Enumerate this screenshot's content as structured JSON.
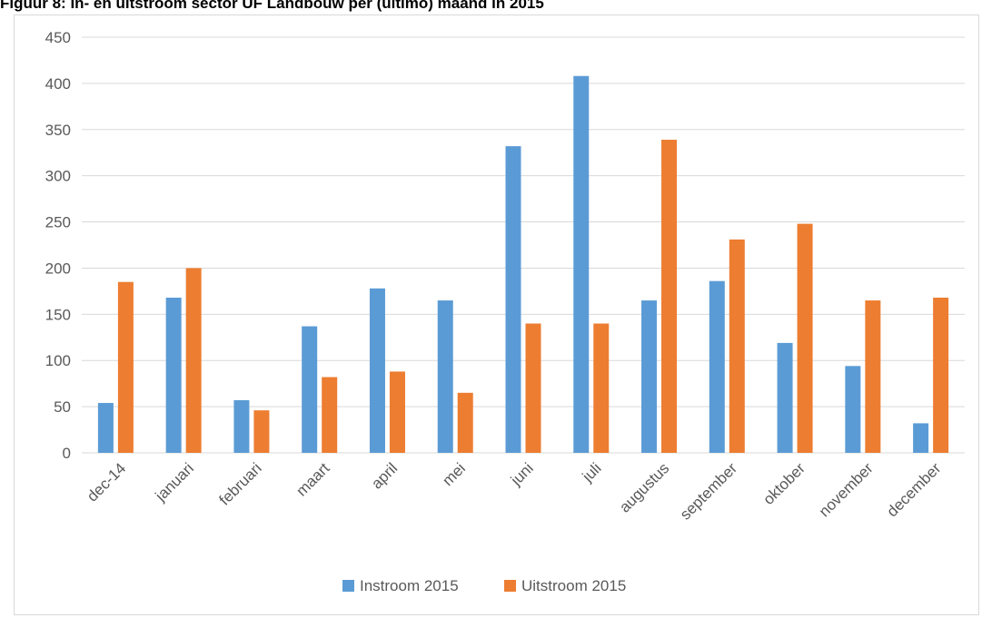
{
  "figure": {
    "title": "Figuur 8: In- en uitstroom sector UF Landbouw per (ultimo) maand in 2015"
  },
  "chart_data": {
    "type": "bar",
    "title": "",
    "xlabel": "",
    "ylabel": "",
    "categories": [
      "dec-14",
      "januari",
      "februari",
      "maart",
      "april",
      "mei",
      "juni",
      "juli",
      "augustus",
      "september",
      "oktober",
      "november",
      "december"
    ],
    "series": [
      {
        "name": "Instroom 2015",
        "color": "#5b9bd5",
        "values": [
          54,
          168,
          57,
          137,
          178,
          165,
          332,
          408,
          165,
          186,
          119,
          94,
          32
        ]
      },
      {
        "name": "Uitstroom 2015",
        "color": "#ed7d31",
        "values": [
          185,
          200,
          46,
          82,
          88,
          65,
          140,
          140,
          339,
          231,
          248,
          165,
          168
        ]
      }
    ],
    "ylim": [
      0,
      450
    ],
    "yticks": [
      "0",
      "50",
      "100",
      "150",
      "200",
      "250",
      "300",
      "350",
      "400",
      "450"
    ],
    "grid": true,
    "legend_position": "bottom",
    "gridline_color": "#d9d9d9"
  }
}
